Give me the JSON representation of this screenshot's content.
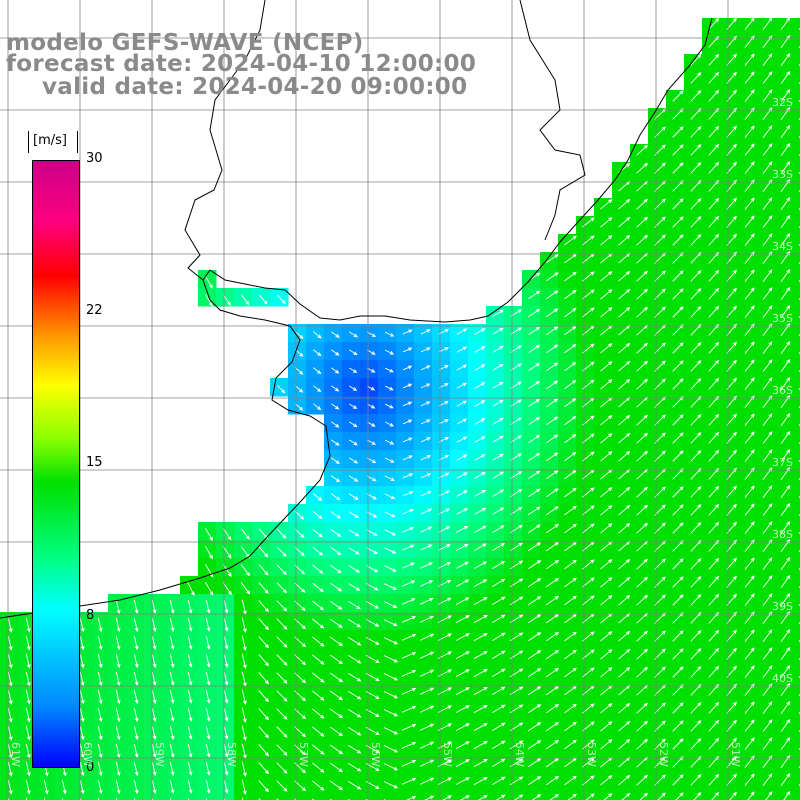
{
  "title": {
    "model": "modelo GEFS-WAVE (NCEP)",
    "forecast": "forecast date: 2024-04-10 12:00:00",
    "valid": "valid date: 2024-04-20 09:00:00"
  },
  "colorbar": {
    "units": "[m/s]",
    "ticks": [
      "30",
      "22",
      "15",
      "8",
      "0"
    ],
    "min": 0,
    "max": 30
  },
  "field": "wind speed (m/s) with direction arrows",
  "lat_labels": [
    "32S",
    "33S",
    "34S",
    "35S",
    "36S",
    "37S",
    "38S",
    "39S",
    "40S"
  ],
  "lon_labels": [
    "61W",
    "60W",
    "59W",
    "58W",
    "57W",
    "56W",
    "55W",
    "54W",
    "53W",
    "52W",
    "51W"
  ],
  "colors": {
    "land": "#ffffff",
    "grid": "#808080",
    "coast": "#000000",
    "arrow": "#ffffff"
  }
}
